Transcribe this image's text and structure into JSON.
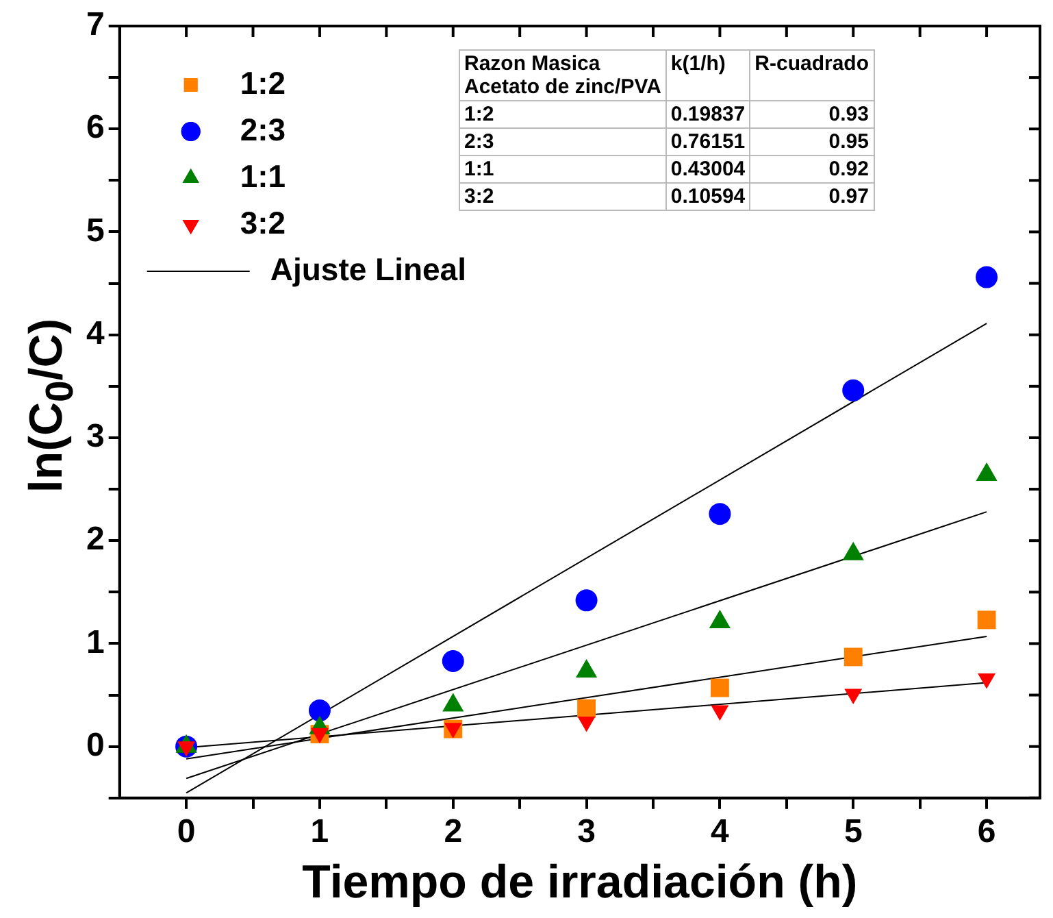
{
  "chart_data": {
    "type": "scatter",
    "xlabel": "Tiempo de irradiación (h)",
    "ylabel": "ln(C$_{0}$/C)",
    "xlim": [
      -0.5,
      6.4
    ],
    "ylim": [
      -0.5,
      7
    ],
    "xticks": [
      0,
      {
        "value": 0.5,
        "label": null
      },
      1,
      {
        "value": 1.5,
        "label": null
      },
      2,
      {
        "value": 2.5,
        "label": null
      },
      3,
      {
        "value": 3.5,
        "label": null
      },
      4,
      {
        "value": 4.5,
        "label": null
      },
      5,
      {
        "value": 5.5,
        "label": null
      },
      6
    ],
    "yticks": [
      {
        "value": -0.5,
        "label": null
      },
      0,
      {
        "value": 0.5,
        "label": null
      },
      1,
      {
        "value": 1.5,
        "label": null
      },
      2,
      {
        "value": 2.5,
        "label": null
      },
      3,
      {
        "value": 3.5,
        "label": null
      },
      4,
      {
        "value": 4.5,
        "label": null
      },
      5,
      {
        "value": 5.5,
        "label": null
      },
      6,
      {
        "value": 6.5,
        "label": null
      },
      7
    ],
    "legend": "top left",
    "series": [
      {
        "name": "1:2",
        "type": "scatter",
        "marker": "square",
        "color": "#ff7f00",
        "x": [
          1,
          2,
          3,
          4,
          5,
          6
        ],
        "values": [
          0.12,
          0.17,
          0.37,
          0.57,
          0.87,
          1.23
        ]
      },
      {
        "name": "2:3",
        "type": "scatter",
        "marker": "circle",
        "color": "#0000ff",
        "x": [
          0,
          1,
          2,
          3,
          4,
          5,
          6
        ],
        "values": [
          0,
          0.35,
          0.83,
          1.42,
          2.26,
          3.46,
          4.56
        ]
      },
      {
        "name": "1:1",
        "type": "scatter",
        "marker": "triangle",
        "color": "#008000",
        "x": [
          0,
          1,
          2,
          3,
          4,
          5,
          6
        ],
        "values": [
          0,
          0.18,
          0.4,
          0.73,
          1.21,
          1.87,
          2.64
        ]
      },
      {
        "name": "3:2",
        "type": "scatter",
        "marker": "triangle_down",
        "color": "#ff0000",
        "x": [
          0,
          1,
          2,
          3,
          4,
          5,
          6
        ],
        "values": [
          0,
          0.13,
          0.18,
          0.24,
          0.35,
          0.51,
          0.66
        ]
      },
      {
        "name": "Ajuste Lineal",
        "type": "line",
        "marker": "none",
        "color": "#000000",
        "x": [
          0,
          6
        ],
        "values": [
          -0.45,
          4.11
        ]
      },
      {
        "type": "line",
        "marker": "none",
        "color": "#000000",
        "x": [
          0,
          6
        ],
        "values": [
          -0.31,
          2.28
        ]
      },
      {
        "type": "line",
        "marker": "none",
        "color": "#000000",
        "x": [
          0,
          6
        ],
        "values": [
          -0.12,
          1.07
        ]
      },
      {
        "type": "line",
        "marker": "none",
        "color": "#000000",
        "x": [
          0,
          6
        ],
        "values": [
          -0.01,
          0.62
        ]
      }
    ],
    "annotations": [
      "Razon Masica\nAcetato de zinc/PVA",
      "k(1/h)",
      "R-cuadrado",
      "1:2",
      "0.19837",
      "0.93",
      "2:3",
      "0.76151",
      "0.95",
      "1:1",
      "0.43004",
      "0.92",
      "3:2",
      "0.10594",
      "0.97"
    ]
  }
}
